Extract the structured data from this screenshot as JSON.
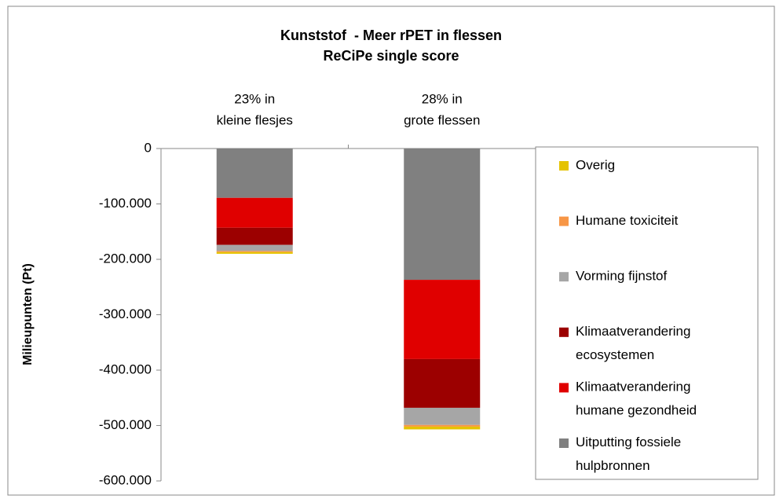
{
  "chart_data": {
    "type": "stacked-bar",
    "title": "Kunststof  - Meer rPET in flessen",
    "subtitle": "ReCiPe single score",
    "y_label": "Milieupunten (Pt)",
    "categories": [
      "23% in\nkleine flesjes",
      "28% in\ngrote flessen"
    ],
    "series": [
      {
        "name": "Uitputting fossiele\nhulpbronnen",
        "color": "#808080",
        "values": [
          -89000,
          -237000
        ]
      },
      {
        "name": "Klimaatverandering\nhumane gezondheid",
        "color": "#e00000",
        "values": [
          -54000,
          -143000
        ]
      },
      {
        "name": "Klimaatverandering\necosystemen",
        "color": "#9c0000",
        "values": [
          -31000,
          -88000
        ]
      },
      {
        "name": "Vorming fijnstof",
        "color": "#a6a6a6",
        "values": [
          -11000,
          -31000
        ]
      },
      {
        "name": "Humane toxiciteit",
        "color": "#f79646",
        "values": [
          -2000,
          -3000
        ]
      },
      {
        "name": "Overig",
        "color": "#e5c300",
        "values": [
          -3000,
          -5000
        ]
      }
    ],
    "ylim": [
      -600000,
      0
    ],
    "yticks": [
      0,
      {
        "value": -100000,
        "label": "-100.000"
      },
      {
        "value": -200000,
        "label": "-200.000"
      },
      {
        "value": -300000,
        "label": "-300.000"
      },
      {
        "value": -400000,
        "label": "-400.000"
      },
      {
        "value": -500000,
        "label": "-500.000"
      },
      {
        "value": -600000,
        "label": "-600.000"
      }
    ],
    "legend": "right"
  }
}
